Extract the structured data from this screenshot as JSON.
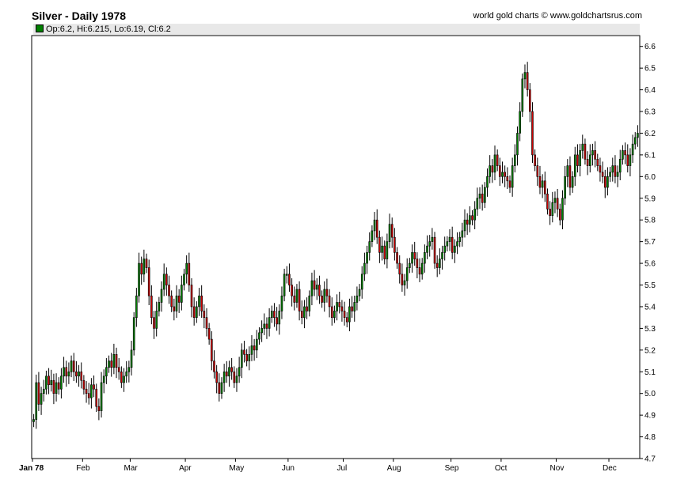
{
  "header": {
    "title": "Silver - Daily 1978",
    "credit": "world gold charts © www.goldchartsrus.com",
    "legend": "Op:6.2, Hi:6.215, Lo:6.19, Cl:6.2"
  },
  "colors": {
    "up": "#008000",
    "down": "#cc0000",
    "wick": "#000000",
    "axis": "#000000"
  },
  "chart_data": {
    "type": "candlestick",
    "title": "Silver - Daily 1978",
    "ylim": [
      4.7,
      6.65
    ],
    "yticks": [
      "4.7",
      "4.8",
      "4.9",
      "5.0",
      "5.1",
      "5.2",
      "5.3",
      "5.4",
      "5.5",
      "5.6",
      "5.7",
      "5.8",
      "5.9",
      "6.0",
      "6.1",
      "6.2",
      "6.3",
      "6.4",
      "6.5",
      "6.6"
    ],
    "month_labels": [
      "Jan 78",
      "Feb",
      "Mar",
      "Apr",
      "May",
      "Jun",
      "Jul",
      "Aug",
      "Sep",
      "Oct",
      "Nov",
      "Dec"
    ],
    "last_bar": {
      "open": 6.2,
      "high": 6.215,
      "low": 6.19,
      "close": 6.2
    },
    "months": [
      {
        "label": "Jan 78",
        "closes": [
          4.88,
          5.05,
          4.95,
          5.0,
          5.02,
          5.08,
          5.04,
          5.06,
          5.0,
          5.05,
          5.02,
          5.08,
          5.12,
          5.08,
          5.1,
          5.15,
          5.1,
          5.08,
          5.1,
          5.06
        ]
      },
      {
        "label": "Feb",
        "closes": [
          5.02,
          5.0,
          4.98,
          5.04,
          5.02,
          4.94,
          4.92,
          5.05,
          5.08,
          5.12,
          5.15,
          5.12,
          5.18,
          5.12,
          5.1,
          5.05,
          5.08,
          5.1,
          5.12
        ]
      },
      {
        "label": "Mar",
        "closes": [
          5.2,
          5.35,
          5.45,
          5.6,
          5.55,
          5.62,
          5.58,
          5.45,
          5.35,
          5.3,
          5.38,
          5.42,
          5.48,
          5.55,
          5.5,
          5.45,
          5.4,
          5.38,
          5.45,
          5.42,
          5.5,
          5.55
        ]
      },
      {
        "label": "Apr",
        "closes": [
          5.6,
          5.5,
          5.4,
          5.35,
          5.4,
          5.45,
          5.38,
          5.35,
          5.3,
          5.25,
          5.15,
          5.1,
          5.05,
          5.0,
          5.05,
          5.1,
          5.08,
          5.12,
          5.1,
          5.05
        ]
      },
      {
        "label": "May",
        "closes": [
          5.08,
          5.12,
          5.2,
          5.18,
          5.15,
          5.18,
          5.22,
          5.2,
          5.25,
          5.28,
          5.3,
          5.32,
          5.3,
          5.35,
          5.38,
          5.35,
          5.32,
          5.38,
          5.45,
          5.55,
          5.55
        ]
      },
      {
        "label": "Jun",
        "closes": [
          5.5,
          5.45,
          5.42,
          5.48,
          5.38,
          5.35,
          5.4,
          5.38,
          5.45,
          5.52,
          5.48,
          5.5,
          5.45,
          5.42,
          5.48,
          5.45,
          5.4,
          5.35,
          5.38,
          5.42,
          5.4,
          5.38
        ]
      },
      {
        "label": "Jul",
        "closes": [
          5.35,
          5.33,
          5.4,
          5.38,
          5.42,
          5.45,
          5.48,
          5.55,
          5.6,
          5.65,
          5.7,
          5.75,
          5.8,
          5.72,
          5.65,
          5.68,
          5.62,
          5.7,
          5.78,
          5.72
        ]
      },
      {
        "label": "Aug",
        "closes": [
          5.65,
          5.6,
          5.55,
          5.5,
          5.52,
          5.58,
          5.6,
          5.65,
          5.62,
          5.58,
          5.55,
          5.6,
          5.65,
          5.68,
          5.7,
          5.72,
          5.6,
          5.58,
          5.62,
          5.65,
          5.68,
          5.7,
          5.72
        ]
      },
      {
        "label": "Sep",
        "closes": [
          5.65,
          5.68,
          5.7,
          5.72,
          5.75,
          5.8,
          5.78,
          5.82,
          5.8,
          5.85,
          5.9,
          5.92,
          5.88,
          5.95,
          6.0,
          6.05,
          6.02,
          6.1,
          6.05,
          6.0
        ]
      },
      {
        "label": "Oct",
        "closes": [
          6.02,
          6.0,
          5.98,
          5.95,
          6.05,
          6.1,
          6.2,
          6.3,
          6.45,
          6.48,
          6.4,
          6.3,
          6.1,
          6.05,
          6.0,
          5.95,
          5.98,
          5.92,
          5.85,
          5.82,
          5.88,
          5.9
        ]
      },
      {
        "label": "Nov",
        "closes": [
          5.85,
          5.8,
          5.9,
          6.0,
          6.05,
          5.95,
          6.0,
          6.1,
          6.05,
          6.12,
          6.15,
          6.08,
          6.05,
          6.1,
          6.12,
          6.08,
          6.05,
          6.02,
          6.0,
          5.95,
          6.0
        ]
      },
      {
        "label": "Dec",
        "closes": [
          6.02,
          6.05,
          6.0,
          6.02,
          6.08,
          6.12,
          6.1,
          6.05,
          6.1,
          6.15,
          6.18,
          6.2
        ]
      }
    ]
  }
}
